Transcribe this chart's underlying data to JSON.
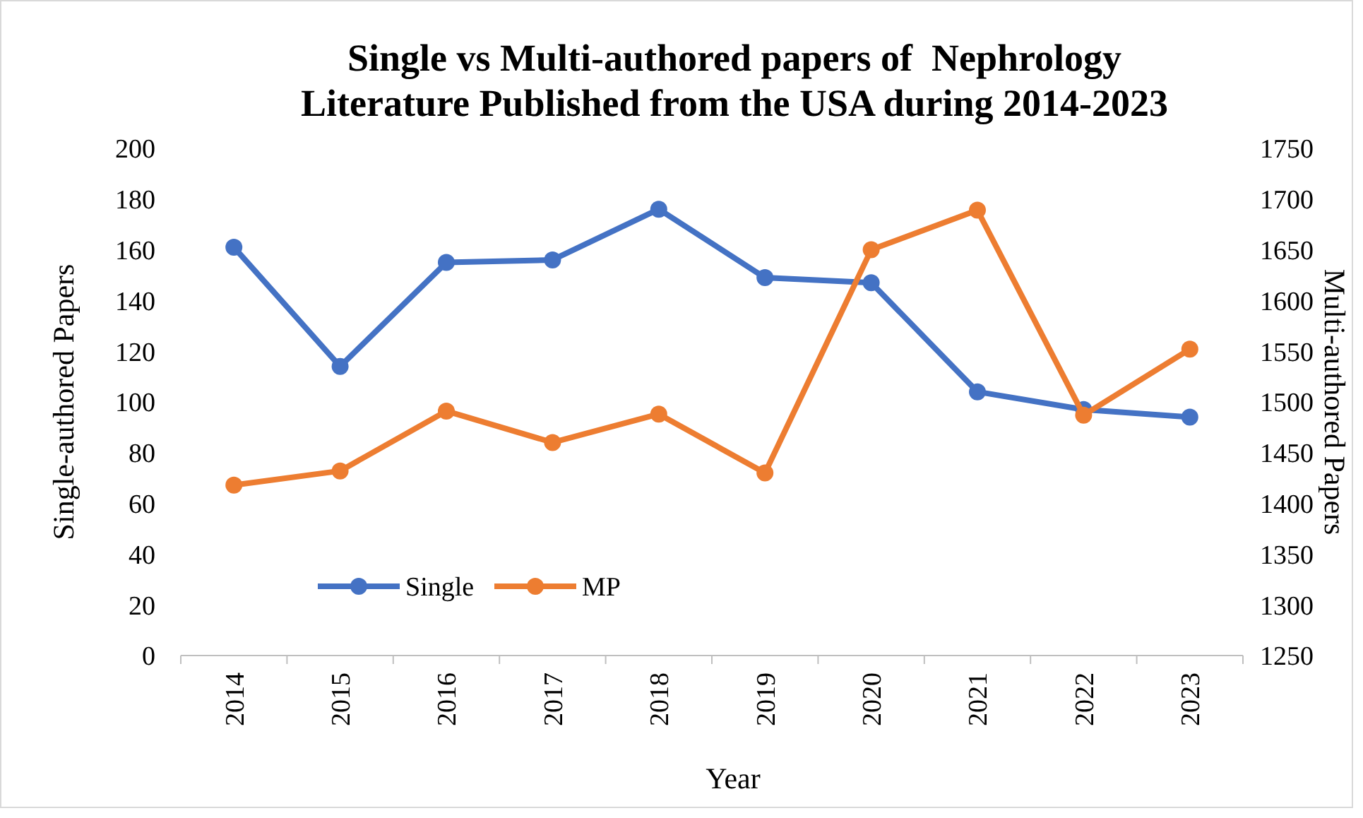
{
  "chart_data": {
    "type": "line",
    "title": "Single vs Multi-authored papers of  Nephrology Literature Published from the USA during 2014-2023",
    "xlabel": "Year",
    "ylabel": "Single-authored Papers",
    "y2label": "Multi-authored Papers",
    "categories": [
      "2014",
      "2015",
      "2016",
      "2017",
      "2018",
      "2019",
      "2020",
      "2021",
      "2022",
      "2023"
    ],
    "series": [
      {
        "name": "Single",
        "color": "#4472c4",
        "values": [
          161,
          114,
          155,
          156,
          176,
          149,
          147,
          104,
          97,
          94
        ]
      },
      {
        "name": "MP",
        "color": "#ed7d31",
        "axis": "y2",
        "values": [
          1418,
          1432,
          1491,
          1460,
          1488,
          1430,
          1650,
          1689,
          1487,
          1552
        ]
      }
    ],
    "ylim": [
      0,
      200
    ],
    "yticks": [
      0,
      20,
      40,
      60,
      80,
      100,
      120,
      140,
      160,
      180,
      200
    ],
    "y2lim": [
      1250,
      1750
    ],
    "y2ticks": [
      1250,
      1300,
      1350,
      1400,
      1450,
      1500,
      1550,
      1600,
      1650,
      1700,
      1750
    ],
    "grid": false,
    "legend": "bottom left",
    "marker": "circle",
    "line_style": "solid"
  }
}
